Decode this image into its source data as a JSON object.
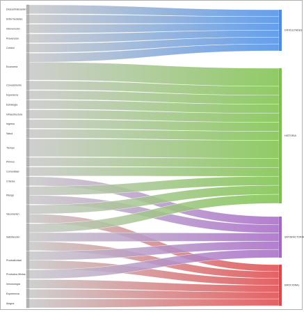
{
  "chart_data": {
    "type": "sankey",
    "title": "",
    "sources": [
      {
        "name": "Descentralización",
        "value": 1
      },
      {
        "name": "Enfermedades",
        "value": 1
      },
      {
        "name": "Intervención",
        "value": 1
      },
      {
        "name": "Prevención",
        "value": 1
      },
      {
        "name": "Control",
        "value": 1
      },
      {
        "name": "Economía",
        "value": 3
      },
      {
        "name": "Conocimiento",
        "value": 1
      },
      {
        "name": "Esperanza",
        "value": 1
      },
      {
        "name": "Estrategia",
        "value": 1
      },
      {
        "name": "Infraestructura",
        "value": 1
      },
      {
        "name": "Ingreso",
        "value": 1
      },
      {
        "name": "Salud",
        "value": 1
      },
      {
        "name": "Tiempo",
        "value": 2
      },
      {
        "name": "Pirimos",
        "value": 1
      },
      {
        "name": "Comunidad",
        "value": 1
      },
      {
        "name": "Crianza",
        "value": 1
      },
      {
        "name": "Riesgo",
        "value": 2
      },
      {
        "name": "Vacunación",
        "value": 2
      },
      {
        "name": "Satisfacción",
        "value": 3
      },
      {
        "name": "Productividad",
        "value": 2
      },
      {
        "name": "Productos Mixtos",
        "value": 1
      },
      {
        "name": "Inmunología",
        "value": 1
      },
      {
        "name": "Experiencia",
        "value": 1
      },
      {
        "name": "Alegría",
        "value": 1
      }
    ],
    "targets": [
      {
        "name": "DIFICULTADES",
        "color": "#4a8ee8"
      },
      {
        "name": "HISTORIA",
        "color": "#7cc24a"
      },
      {
        "name": "SATISFACTORIAS",
        "color": "#a668c8"
      },
      {
        "name": "EMOCIONAL",
        "color": "#e0474a"
      }
    ],
    "links": [
      {
        "source": 0,
        "target": 0,
        "value": 1
      },
      {
        "source": 1,
        "target": 0,
        "value": 1
      },
      {
        "source": 2,
        "target": 0,
        "value": 1
      },
      {
        "source": 3,
        "target": 0,
        "value": 1
      },
      {
        "source": 4,
        "target": 0,
        "value": 1
      },
      {
        "source": 5,
        "target": 0,
        "value": 1
      },
      {
        "source": 5,
        "target": 1,
        "value": 2
      },
      {
        "source": 6,
        "target": 1,
        "value": 1
      },
      {
        "source": 7,
        "target": 1,
        "value": 1
      },
      {
        "source": 8,
        "target": 1,
        "value": 1
      },
      {
        "source": 9,
        "target": 1,
        "value": 1
      },
      {
        "source": 10,
        "target": 1,
        "value": 1
      },
      {
        "source": 11,
        "target": 1,
        "value": 1
      },
      {
        "source": 12,
        "target": 1,
        "value": 2
      },
      {
        "source": 13,
        "target": 1,
        "value": 1
      },
      {
        "source": 14,
        "target": 1,
        "value": 1
      },
      {
        "source": 15,
        "target": 2,
        "value": 1
      },
      {
        "source": 16,
        "target": 1,
        "value": 1
      },
      {
        "source": 16,
        "target": 2,
        "value": 1
      },
      {
        "source": 17,
        "target": 1,
        "value": 1
      },
      {
        "source": 17,
        "target": 3,
        "value": 1
      },
      {
        "source": 18,
        "target": 1,
        "value": 1
      },
      {
        "source": 18,
        "target": 2,
        "value": 1
      },
      {
        "source": 18,
        "target": 3,
        "value": 1
      },
      {
        "source": 19,
        "target": 2,
        "value": 1
      },
      {
        "source": 19,
        "target": 3,
        "value": 1
      },
      {
        "source": 20,
        "target": 2,
        "value": 1
      },
      {
        "source": 21,
        "target": 3,
        "value": 1
      },
      {
        "source": 22,
        "target": 3,
        "value": 1
      },
      {
        "source": 23,
        "target": 3,
        "value": 1
      }
    ]
  }
}
